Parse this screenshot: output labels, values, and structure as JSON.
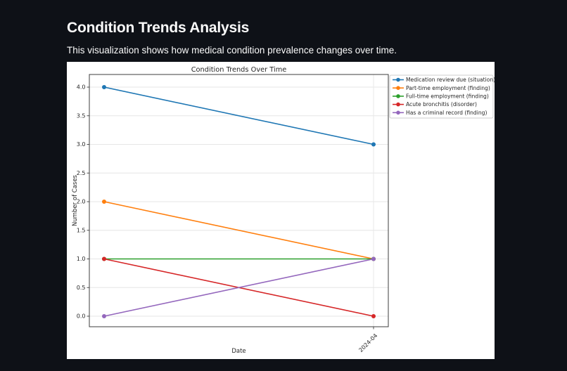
{
  "header": {
    "title": "Condition Trends Analysis",
    "subtitle": "This visualization shows how medical condition prevalence changes over time."
  },
  "chart_data": {
    "type": "line",
    "title": "Condition Trends Over Time",
    "xlabel": "Date",
    "ylabel": "Number of Cases",
    "x_tick_labels": [
      "",
      "2024-04"
    ],
    "y_ticks": [
      0.0,
      0.5,
      1.0,
      1.5,
      2.0,
      2.5,
      3.0,
      3.5,
      4.0
    ],
    "ylim": [
      -0.2,
      4.2
    ],
    "grid": true,
    "marker": "circle",
    "legend_position": "outside upper right",
    "series": [
      {
        "name": "Medication review due (situation)",
        "color": "#1f77b4",
        "values": [
          4,
          3
        ]
      },
      {
        "name": "Part-time employment (finding)",
        "color": "#ff7f0e",
        "values": [
          2,
          1
        ]
      },
      {
        "name": "Full-time employment (finding)",
        "color": "#2ca02c",
        "values": [
          1,
          1
        ]
      },
      {
        "name": "Acute bronchitis (disorder)",
        "color": "#d62728",
        "values": [
          1,
          0
        ]
      },
      {
        "name": "Has a criminal record (finding)",
        "color": "#9467bd",
        "values": [
          0,
          1
        ]
      }
    ]
  },
  "colors": {
    "page_bg": "#0e1117",
    "page_text": "#fafafa",
    "figure_bg": "#ffffff",
    "chart_text": "#262626",
    "grid": "#e6e6e6",
    "spine": "#3d3d3d",
    "legend_border": "#cccccc"
  }
}
